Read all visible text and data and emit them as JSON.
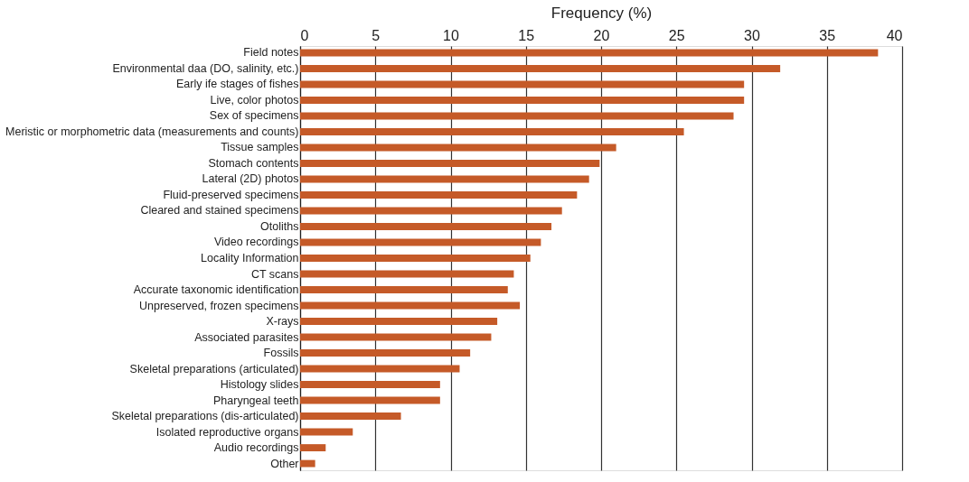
{
  "chart_data": {
    "type": "bar",
    "orientation": "horizontal",
    "xlabel": "Frequency (%)",
    "categories": [
      "Field notes",
      "Environmental daa (DO, salinity, etc.)",
      "Early ife stages of fishes",
      "Live, color photos",
      "Sex of specimens",
      "Meristic or morphometric data (measurements and counts)",
      "Tissue samples",
      "Stomach contents",
      "Lateral (2D) photos",
      "Fluid-preserved specimens",
      "Cleared and stained specimens",
      "Otoliths",
      "Video recordings",
      "Locality Information",
      "CT scans",
      "Accurate taxonomic identification",
      "Unpreserved, frozen specimens",
      "X-rays",
      "Associated parasites",
      "Fossils",
      "Skeletal preparations (articulated)",
      "Histology slides",
      "Pharyngeal teeth",
      "Skeletal preparations (dis-articulated)",
      "Isolated reproductive organs",
      "Audio recordings",
      "Other"
    ],
    "values": [
      38.4,
      31.9,
      29.5,
      29.5,
      28.8,
      25.5,
      21.0,
      19.9,
      19.2,
      18.4,
      17.4,
      16.7,
      16.0,
      15.3,
      14.2,
      13.8,
      14.6,
      13.1,
      12.7,
      11.3,
      10.6,
      9.3,
      9.3,
      6.7,
      3.5,
      1.7,
      1.0
    ],
    "color": "#c55a28",
    "xlim": [
      0,
      40
    ],
    "xticks": [
      0,
      5,
      10,
      15,
      20,
      25,
      30,
      35,
      40
    ],
    "grid": "x"
  }
}
